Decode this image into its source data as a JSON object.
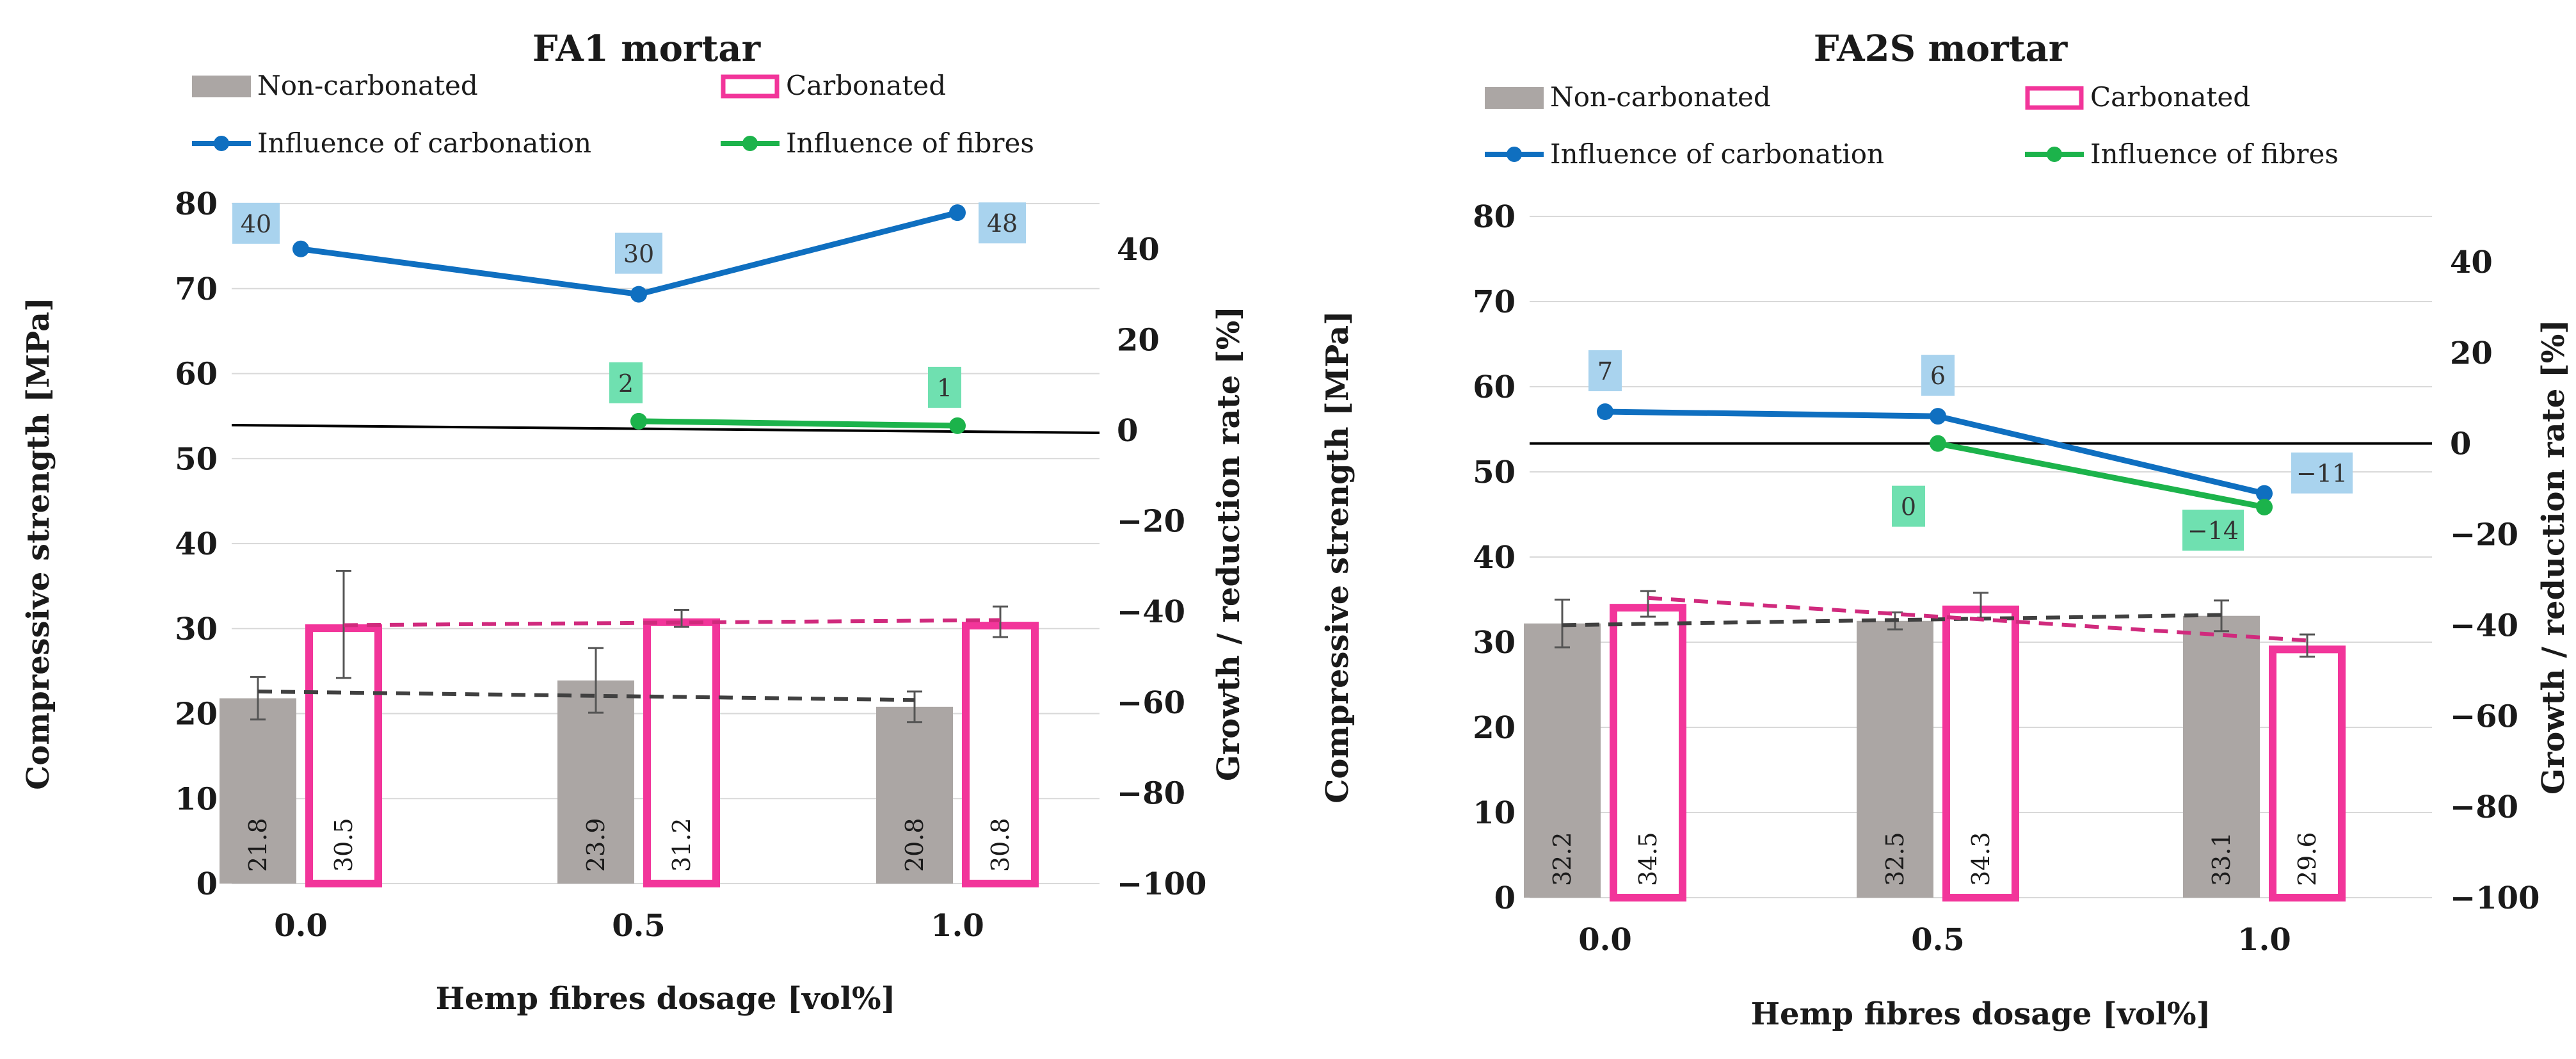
{
  "colors": {
    "non_carbonated": "#aba6a4",
    "carbonated": "#f2359a",
    "influence_carbonation": "#0f6fc0",
    "influence_fibres": "#1cb34b",
    "label_bg_carbonation": "#a9d3ee",
    "label_bg_fibres": "#6fe0b0",
    "zero_line": "#000000",
    "trend_non_carbonated": "#404040",
    "trend_carbonated": "#d02a7d"
  },
  "chart_data": [
    {
      "type": "bar",
      "title": "FA1 mortar",
      "xlabel": "Hemp fibres dosage [vol%]",
      "ylabel": "Compressive strength [MPa]",
      "ylabel_right": "Growth / reduction rate [%]",
      "categories": [
        "0.0",
        "0.5",
        "1.0"
      ],
      "ylim": [
        0,
        80
      ],
      "yticks": [
        "0",
        "10",
        "20",
        "30",
        "40",
        "50",
        "60",
        "70",
        "80"
      ],
      "ylim_right": [
        -100,
        50
      ],
      "yticks_right": [
        "−100",
        "−80",
        "−60",
        "−40",
        "−20",
        "0",
        "20",
        "40"
      ],
      "legend": [
        "Non-carbonated",
        "Carbonated",
        "Influence of carbonation",
        "Influence of fibres"
      ],
      "series": [
        {
          "name": "Non-carbonated",
          "values": [
            21.8,
            23.9,
            20.8
          ],
          "labels": [
            "21.8",
            "23.9",
            "20.8"
          ],
          "errors": [
            2.5,
            3.8,
            1.8
          ]
        },
        {
          "name": "Carbonated",
          "values": [
            30.5,
            31.2,
            30.8
          ],
          "labels": [
            "30.5",
            "31.2",
            "30.8"
          ],
          "errors": [
            6.3,
            1.0,
            1.8
          ]
        }
      ],
      "lines": [
        {
          "name": "Influence of carbonation",
          "axis": "right",
          "categories_index": [
            0,
            1,
            2
          ],
          "values": [
            40,
            30,
            48
          ],
          "labels": [
            "40",
            "30",
            "48"
          ]
        },
        {
          "name": "Influence of fibres",
          "axis": "right",
          "categories_index": [
            1,
            2
          ],
          "values": [
            2,
            1
          ],
          "labels": [
            "2",
            "1"
          ]
        }
      ],
      "trends": {
        "non_carbonated": [
          22.6,
          21.6
        ],
        "carbonated": [
          30.4,
          31.0
        ]
      }
    },
    {
      "type": "bar",
      "title": "FA2S mortar",
      "xlabel": "Hemp fibres dosage [vol%]",
      "ylabel": "Compressive strength [MPa]",
      "ylabel_right": "Growth / reduction rate [%]",
      "categories": [
        "0.0",
        "0.5",
        "1.0"
      ],
      "ylim": [
        0,
        80
      ],
      "yticks": [
        "0",
        "10",
        "20",
        "30",
        "40",
        "50",
        "60",
        "70",
        "80"
      ],
      "ylim_right": [
        -100,
        50
      ],
      "yticks_right": [
        "−100",
        "−80",
        "−60",
        "−40",
        "−20",
        "0",
        "20",
        "40"
      ],
      "legend": [
        "Non-carbonated",
        "Carbonated",
        "Influence of carbonation",
        "Influence of fibres"
      ],
      "series": [
        {
          "name": "Non-carbonated",
          "values": [
            32.2,
            32.5,
            33.1
          ],
          "labels": [
            "32.2",
            "32.5",
            "33.1"
          ],
          "errors": [
            2.8,
            1.0,
            1.8
          ]
        },
        {
          "name": "Carbonated",
          "values": [
            34.5,
            34.3,
            29.6
          ],
          "labels": [
            "34.5",
            "34.3",
            "29.6"
          ],
          "errors": [
            1.5,
            1.5,
            1.3
          ]
        }
      ],
      "lines": [
        {
          "name": "Influence of carbonation",
          "axis": "right",
          "categories_index": [
            0,
            1,
            2
          ],
          "values": [
            7,
            6,
            -11
          ],
          "labels": [
            "7",
            "6",
            "−11"
          ]
        },
        {
          "name": "Influence of fibres",
          "axis": "right",
          "categories_index": [
            1,
            2
          ],
          "values": [
            0,
            -14
          ],
          "labels": [
            "0",
            "−14"
          ]
        }
      ],
      "trends": {
        "non_carbonated": [
          32.0,
          33.2
        ],
        "carbonated": [
          35.2,
          30.2
        ]
      }
    }
  ]
}
